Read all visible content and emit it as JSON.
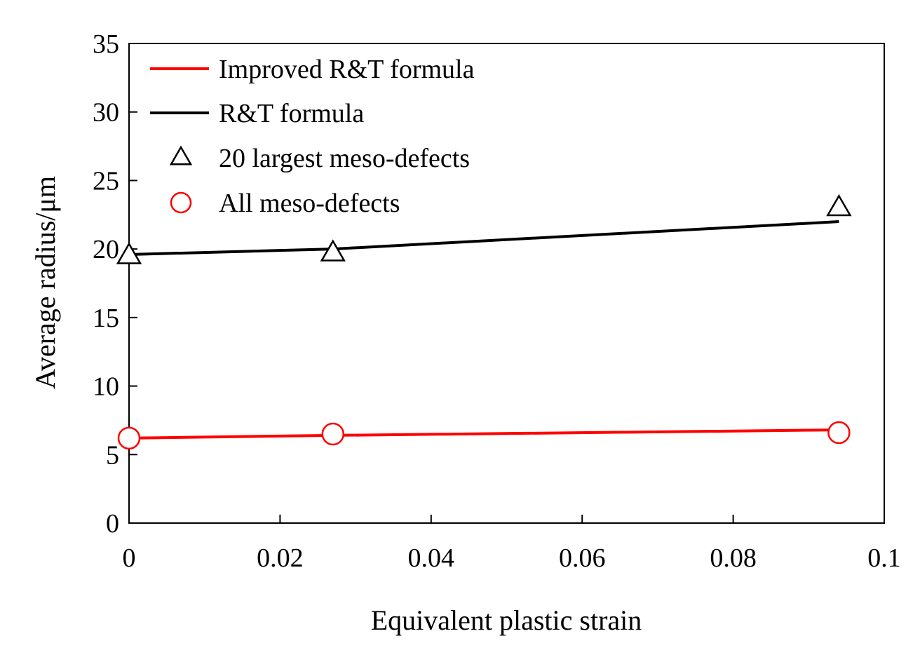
{
  "chart_data": {
    "type": "line",
    "title": "",
    "xlabel": "Equivalent plastic strain",
    "ylabel": "Average radius/μm",
    "xlim": [
      0,
      0.1
    ],
    "ylim": [
      0,
      35
    ],
    "xticks": [
      0,
      0.02,
      0.04,
      0.06,
      0.08,
      0.1
    ],
    "xtick_labels": [
      "0",
      "0.02",
      "0.04",
      "0.06",
      "0.08",
      "0.1"
    ],
    "yticks": [
      0,
      5,
      10,
      15,
      20,
      25,
      30,
      35
    ],
    "ytick_labels": [
      "0",
      "5",
      "10",
      "15",
      "20",
      "25",
      "30",
      "35"
    ],
    "grid": false,
    "legend_position": "top-left",
    "series": [
      {
        "name": "Improved R&T formula",
        "kind": "line",
        "color": "#ff0000",
        "x": [
          0,
          0.027,
          0.094
        ],
        "y": [
          6.2,
          6.4,
          6.8
        ]
      },
      {
        "name": "R&T formula",
        "kind": "line",
        "color": "#000000",
        "x": [
          0,
          0.027,
          0.094
        ],
        "y": [
          19.6,
          20.0,
          22.0
        ]
      },
      {
        "name": "20 largest meso-defects",
        "kind": "marker",
        "marker": "triangle",
        "color": "#000000",
        "x": [
          0,
          0.027,
          0.094
        ],
        "y": [
          19.5,
          19.7,
          23.0
        ]
      },
      {
        "name": "All meso-defects",
        "kind": "marker",
        "marker": "circle",
        "color": "#ff0000",
        "x": [
          0,
          0.027,
          0.094
        ],
        "y": [
          6.2,
          6.5,
          6.6
        ]
      }
    ]
  }
}
